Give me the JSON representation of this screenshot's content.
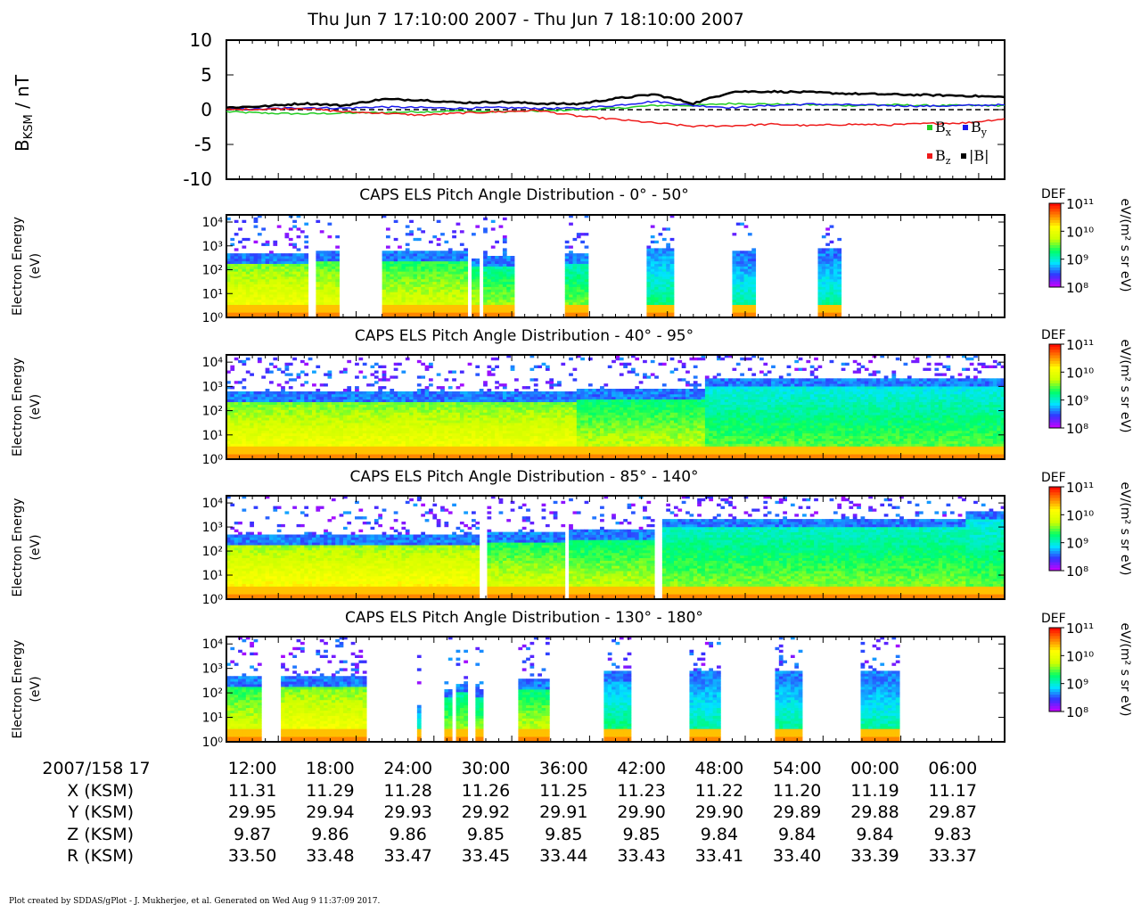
{
  "title": "Thu Jun 7 17:10:00 2007 - Thu Jun 7 18:10:00 2007",
  "footer": "Plot created by SDDAS/gPlot - J. Mukherjee, et al.  Generated on Wed Aug 9 11:37:09 2017.",
  "colors": {
    "bx": "#22cc22",
    "by": "#1a1aee",
    "bz": "#ee1a1a",
    "bmag": "#000000",
    "colorbar": [
      "#cc00ff",
      "#3333ff",
      "#00e5ff",
      "#00ff66",
      "#ccff00",
      "#ffff00",
      "#ff7f00",
      "#ff0000"
    ]
  },
  "chart_data": [
    {
      "type": "line",
      "ylabel": "B",
      "ylabel_sub": "KSM",
      "ylabel_unit": " / nT",
      "ylim": [
        -10,
        10
      ],
      "y_ticks": [
        "10",
        "5",
        "0",
        "-5",
        "-10"
      ],
      "y_tick_values": [
        10,
        5,
        0,
        -5,
        -10
      ],
      "x_range": [
        0,
        60
      ],
      "legend": [
        {
          "key": "bx",
          "base": "B",
          "sub": "x"
        },
        {
          "key": "by",
          "base": "B",
          "sub": "y"
        },
        {
          "key": "bz",
          "base": "B",
          "sub": "z"
        },
        {
          "key": "bmag",
          "base": "|B|",
          "sub": ""
        }
      ],
      "series": [
        {
          "key": "bx",
          "x": [
            0,
            3,
            6,
            9,
            12,
            15,
            18,
            21,
            24,
            27,
            30,
            33,
            36,
            39,
            42,
            45,
            48,
            51,
            54,
            57,
            60
          ],
          "y": [
            -0.3,
            -0.5,
            -0.6,
            -0.5,
            -0.4,
            -0.3,
            -0.2,
            -0.3,
            -0.2,
            0.0,
            0.2,
            0.6,
            0.6,
            0.9,
            0.8,
            0.7,
            0.6,
            0.7,
            0.6,
            0.6,
            0.6
          ]
        },
        {
          "key": "by",
          "x": [
            0,
            3,
            6,
            9,
            12,
            15,
            18,
            21,
            24,
            27,
            30,
            33,
            36,
            39,
            42,
            45,
            48,
            51,
            54,
            57,
            60
          ],
          "y": [
            0.1,
            0.1,
            0.3,
            0.2,
            0.4,
            0.3,
            0.2,
            0.3,
            0.2,
            0.2,
            0.6,
            1.2,
            0.6,
            0.3,
            0.6,
            0.8,
            0.7,
            0.6,
            0.5,
            0.6,
            0.7
          ]
        },
        {
          "key": "bz",
          "x": [
            0,
            3,
            6,
            9,
            12,
            15,
            18,
            21,
            24,
            27,
            30,
            33,
            36,
            39,
            42,
            45,
            48,
            51,
            54,
            57,
            60
          ],
          "y": [
            0.0,
            0.1,
            0.2,
            -0.3,
            -0.5,
            -0.8,
            -0.5,
            -0.3,
            -0.1,
            -0.9,
            -1.4,
            -1.9,
            -2.4,
            -2.3,
            -2.1,
            -2.3,
            -2.1,
            -2.2,
            -2.0,
            -1.9,
            -1.3
          ]
        },
        {
          "key": "bmag",
          "x": [
            0,
            3,
            6,
            9,
            12,
            15,
            18,
            21,
            24,
            27,
            30,
            33,
            36,
            39,
            42,
            45,
            48,
            51,
            54,
            57,
            60
          ],
          "y": [
            0.3,
            0.5,
            0.9,
            0.6,
            1.5,
            1.4,
            1.0,
            1.1,
            0.9,
            0.8,
            1.6,
            2.2,
            0.9,
            2.6,
            2.6,
            2.5,
            2.3,
            2.2,
            2.1,
            2.0,
            1.8
          ]
        }
      ]
    },
    {
      "type": "heatmap",
      "title": "CAPS ELS Pitch Angle Distribution - 0° - 50°",
      "ylabel_line1": "Electron Energy",
      "ylabel_line2": "(eV)",
      "colorbar_title": "DEF",
      "colorbar_unit": "eV/(m² s sr eV)",
      "colorbar_ticks": [
        "10¹¹",
        "10¹⁰",
        "10⁹",
        "10⁸"
      ],
      "y_ticks": [
        "10⁴",
        "10³",
        "10²",
        "10¹",
        "10⁰"
      ],
      "x_range": [
        0,
        60
      ],
      "log_e_range": [
        0,
        4.3
      ],
      "color_range": [
        8,
        11
      ],
      "blocks": [
        {
          "t": [
            0,
            6.2
          ],
          "cut": 2.3,
          "peak": 10.2
        },
        {
          "t": [
            7,
            8.8
          ],
          "cut": 2.4,
          "peak": 10.1
        },
        {
          "t": [
            12,
            18.5
          ],
          "cut": 2.4,
          "peak": 10.0
        },
        {
          "t": [
            19,
            19.6
          ],
          "cut": 2.1,
          "peak": 9.9
        },
        {
          "t": [
            19.9,
            22.2
          ],
          "cut": 2.2,
          "peak": 9.8
        },
        {
          "t": [
            26,
            27.8
          ],
          "cut": 2.3,
          "peak": 9.7
        },
        {
          "t": [
            32.5,
            34.5
          ],
          "cut": 2.6,
          "peak": 9.4
        },
        {
          "t": [
            39,
            40.8
          ],
          "cut": 2.4,
          "peak": 9.3
        },
        {
          "t": [
            45.5,
            47.3
          ],
          "cut": 2.6,
          "peak": 9.3
        }
      ]
    },
    {
      "type": "heatmap",
      "title": "CAPS ELS Pitch Angle Distribution - 40° - 95°",
      "ylabel_line1": "Electron Energy",
      "ylabel_line2": "(eV)",
      "colorbar_title": "DEF",
      "colorbar_unit": "eV/(m² s sr eV)",
      "colorbar_ticks": [
        "10¹¹",
        "10¹⁰",
        "10⁹",
        "10⁸"
      ],
      "y_ticks": [
        "10⁴",
        "10³",
        "10²",
        "10¹",
        "10⁰"
      ],
      "x_range": [
        0,
        60
      ],
      "log_e_range": [
        0,
        4.3
      ],
      "color_range": [
        8,
        11
      ],
      "blocks": [
        {
          "t": [
            0,
            27
          ],
          "cut": 2.4,
          "peak": 10.2
        },
        {
          "t": [
            27,
            37
          ],
          "cut": 2.5,
          "peak": 9.9
        },
        {
          "t": [
            37,
            60
          ],
          "cut": 3.0,
          "peak": 9.6
        }
      ]
    },
    {
      "type": "heatmap",
      "title": "CAPS ELS Pitch Angle Distribution - 85° - 140°",
      "ylabel_line1": "Electron Energy",
      "ylabel_line2": "(eV)",
      "colorbar_title": "DEF",
      "colorbar_unit": "eV/(m² s sr eV)",
      "colorbar_ticks": [
        "10¹¹",
        "10¹⁰",
        "10⁹",
        "10⁸"
      ],
      "y_ticks": [
        "10⁴",
        "10³",
        "10²",
        "10¹",
        "10⁰"
      ],
      "x_range": [
        0,
        60
      ],
      "log_e_range": [
        0,
        4.3
      ],
      "color_range": [
        8,
        11
      ],
      "blocks": [
        {
          "t": [
            0,
            19.5
          ],
          "cut": 2.3,
          "peak": 10.3
        },
        {
          "t": [
            20,
            26
          ],
          "cut": 2.4,
          "peak": 10.0
        },
        {
          "t": [
            26.5,
            33
          ],
          "cut": 2.5,
          "peak": 9.9
        },
        {
          "t": [
            33.5,
            57
          ],
          "cut": 3.0,
          "peak": 9.7
        },
        {
          "t": [
            57,
            60
          ],
          "cut": 3.3,
          "peak": 9.6
        }
      ]
    },
    {
      "type": "heatmap",
      "title": "CAPS ELS Pitch Angle Distribution - 130° - 180°",
      "ylabel_line1": "Electron Energy",
      "ylabel_line2": "(eV)",
      "colorbar_title": "DEF",
      "colorbar_unit": "eV/(m² s sr eV)",
      "colorbar_ticks": [
        "10¹¹",
        "10¹⁰",
        "10⁹",
        "10⁸"
      ],
      "y_ticks": [
        "10⁴",
        "10³",
        "10²",
        "10¹",
        "10⁰"
      ],
      "x_range": [
        0,
        60
      ],
      "log_e_range": [
        0,
        4.3
      ],
      "color_range": [
        8,
        11
      ],
      "blocks": [
        {
          "t": [
            0,
            2.8
          ],
          "cut": 2.3,
          "peak": 10.0
        },
        {
          "t": [
            4.2,
            10.8
          ],
          "cut": 2.3,
          "peak": 10.2
        },
        {
          "t": [
            14.7,
            15
          ],
          "cut": 1.2,
          "peak": 9.5
        },
        {
          "t": [
            16.8,
            17.4
          ],
          "cut": 1.8,
          "peak": 9.8
        },
        {
          "t": [
            17.8,
            18.6
          ],
          "cut": 2.0,
          "peak": 9.8
        },
        {
          "t": [
            19.3,
            19.8
          ],
          "cut": 1.8,
          "peak": 9.8
        },
        {
          "t": [
            22.5,
            25
          ],
          "cut": 2.2,
          "peak": 9.9
        },
        {
          "t": [
            29,
            31.2
          ],
          "cut": 2.5,
          "peak": 9.4
        },
        {
          "t": [
            35.8,
            38
          ],
          "cut": 2.6,
          "peak": 9.3
        },
        {
          "t": [
            42.2,
            44.5
          ],
          "cut": 2.6,
          "peak": 9.3
        },
        {
          "t": [
            49,
            51.8
          ],
          "cut": 2.5,
          "peak": 9.3
        }
      ]
    }
  ],
  "ephemeris": {
    "row_labels": [
      "2007/158 17",
      "X (KSM)",
      "Y (KSM)",
      "Z (KSM)",
      "R (KSM)"
    ],
    "times": [
      "12:00",
      "18:00",
      "24:00",
      "30:00",
      "36:00",
      "42:00",
      "48:00",
      "54:00",
      "00:00",
      "06:00"
    ],
    "rows": [
      [
        "11.31",
        "11.29",
        "11.28",
        "11.26",
        "11.25",
        "11.23",
        "11.22",
        "11.20",
        "11.19",
        "11.17"
      ],
      [
        "29.95",
        "29.94",
        "29.93",
        "29.92",
        "29.91",
        "29.90",
        "29.90",
        "29.89",
        "29.88",
        "29.87"
      ],
      [
        "9.87",
        "9.86",
        "9.86",
        "9.85",
        "9.85",
        "9.85",
        "9.84",
        "9.84",
        "9.84",
        "9.83"
      ],
      [
        "33.50",
        "33.48",
        "33.47",
        "33.45",
        "33.44",
        "33.43",
        "33.41",
        "33.40",
        "33.39",
        "33.37"
      ]
    ]
  }
}
